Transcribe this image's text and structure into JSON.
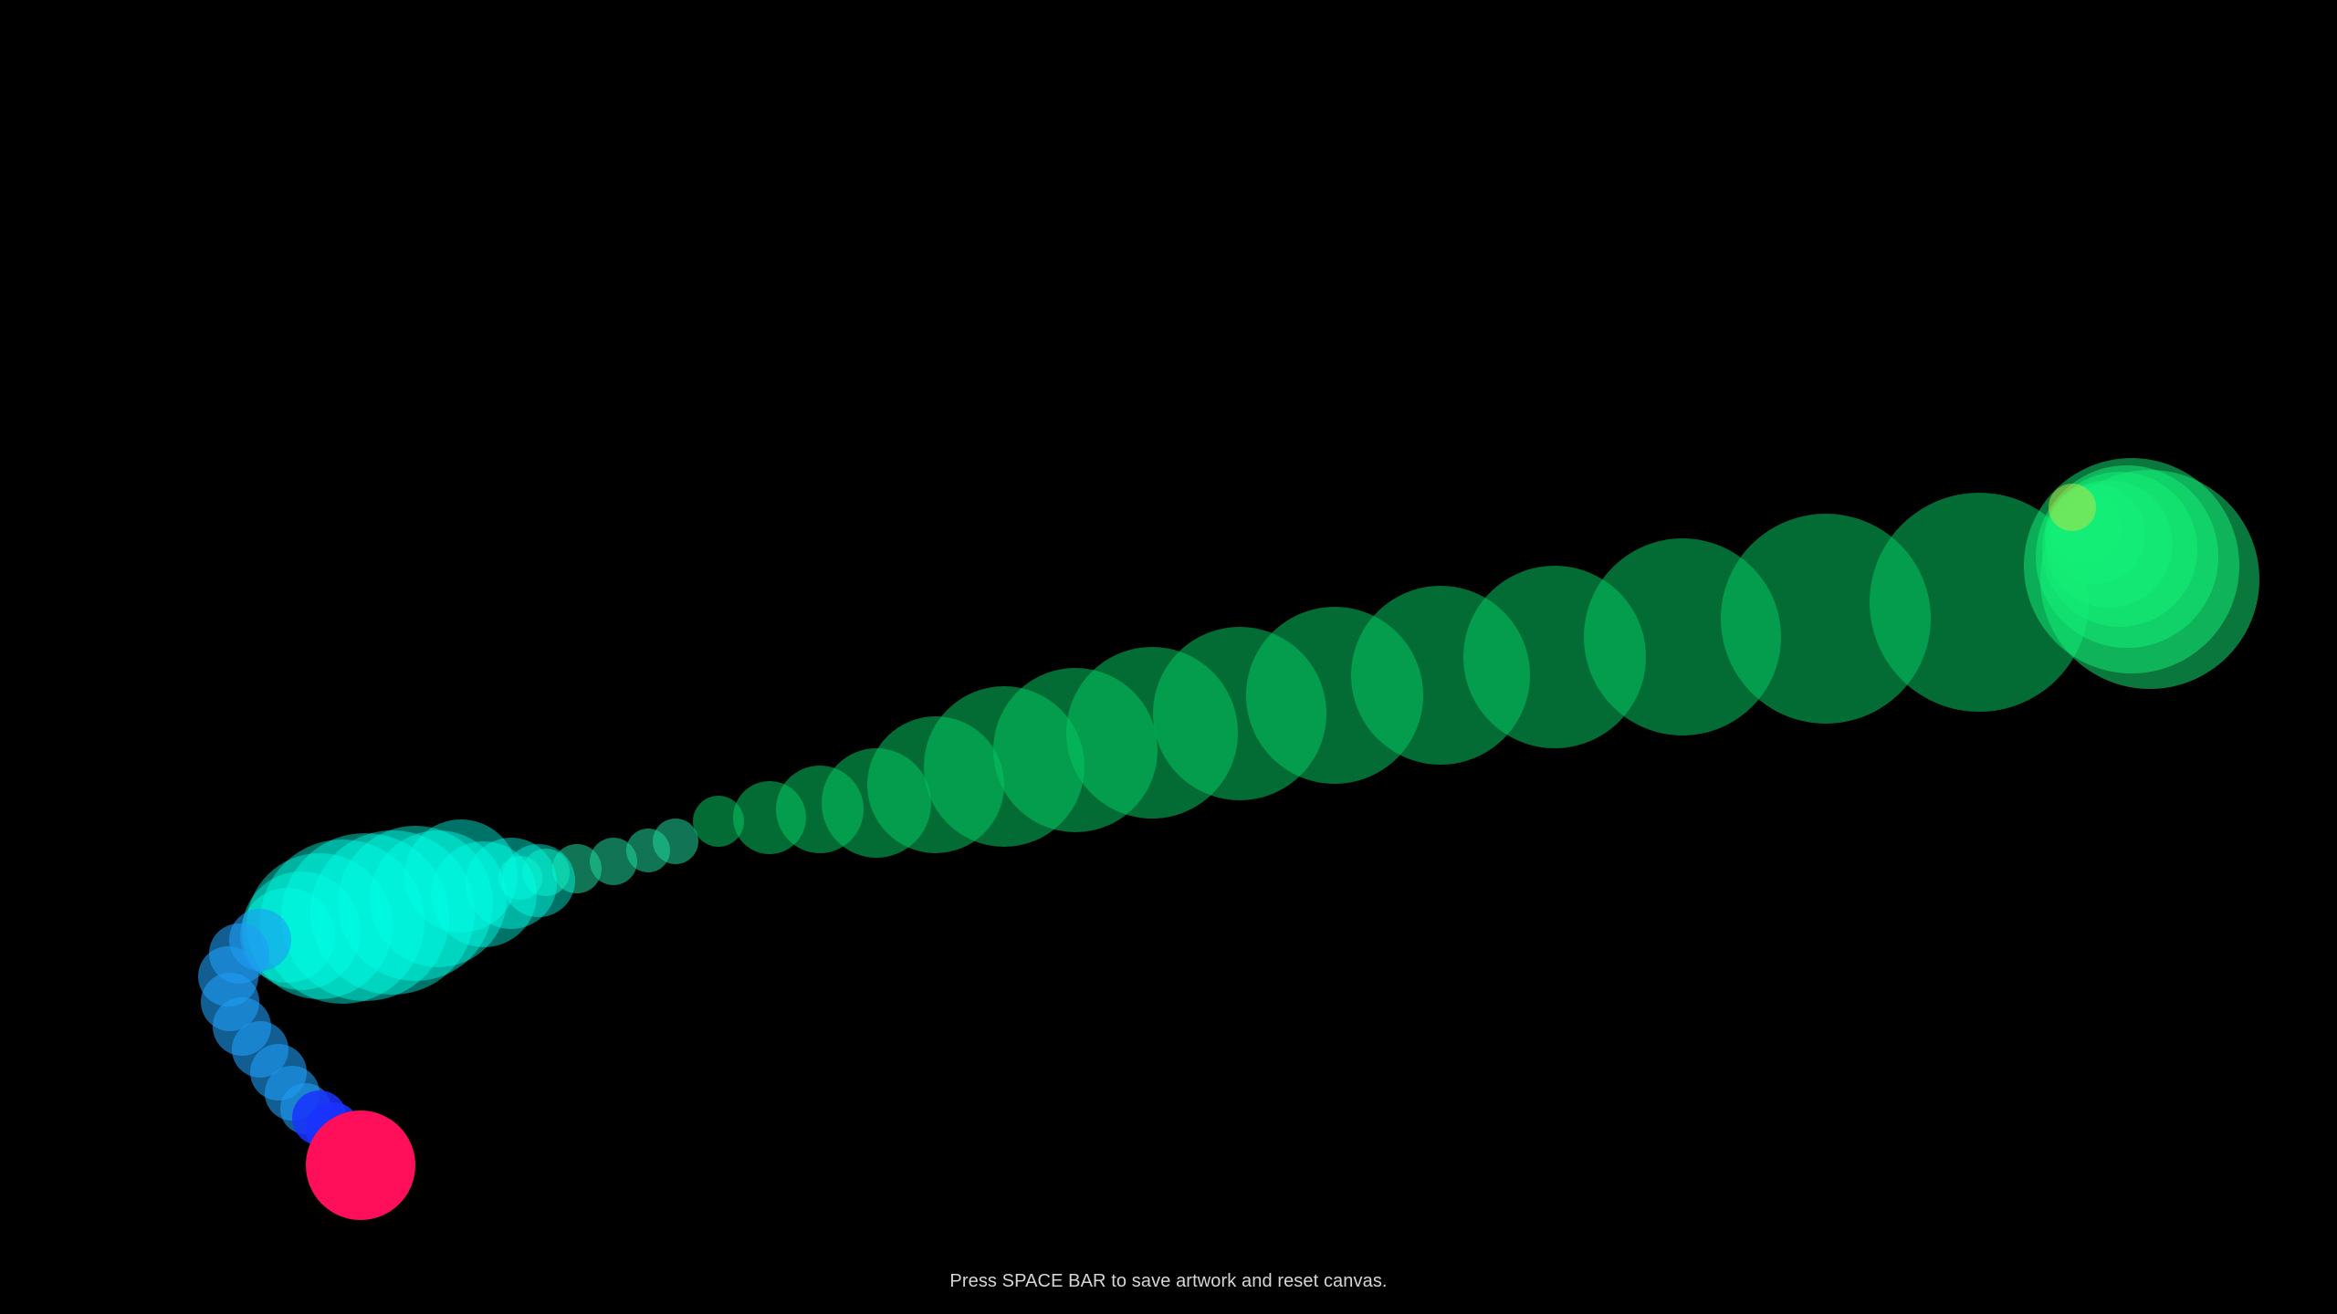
{
  "app": {
    "background": "#000000"
  },
  "canvas": {
    "palette": {
      "cursor_brush": "#ff0f5a",
      "blue_stroke": "#1a33ff",
      "light_blue_stroke": "#1e9cf5",
      "cyan_stroke": "#00ffe6",
      "teal_stroke": "#1fd69a",
      "green_stroke": "#06c460",
      "bright_green_stroke": "#14f078",
      "yellow_green_spot": "#b5e34a"
    }
  },
  "footer": {
    "hint_text": "Press SPACE BAR to save artwork and reset canvas."
  }
}
